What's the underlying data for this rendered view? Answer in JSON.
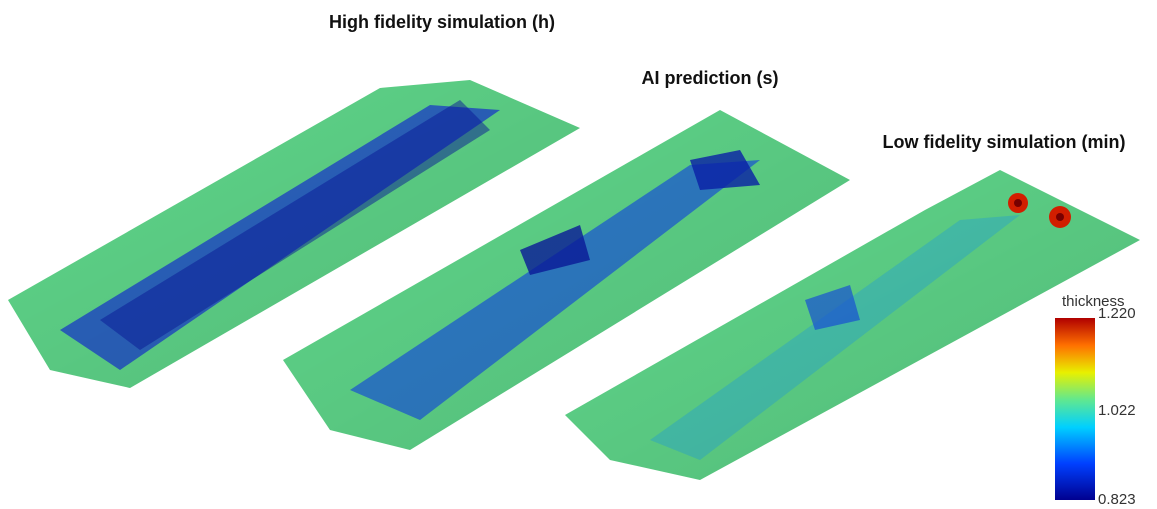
{
  "panels": [
    {
      "title": "High fidelity simulation (h)"
    },
    {
      "title": "AI prediction (s)"
    },
    {
      "title": "Low fidelity simulation (min)"
    }
  ],
  "colorbar": {
    "title": "thickness",
    "labels": [
      "1.220",
      "1.022",
      "0.823"
    ]
  }
}
